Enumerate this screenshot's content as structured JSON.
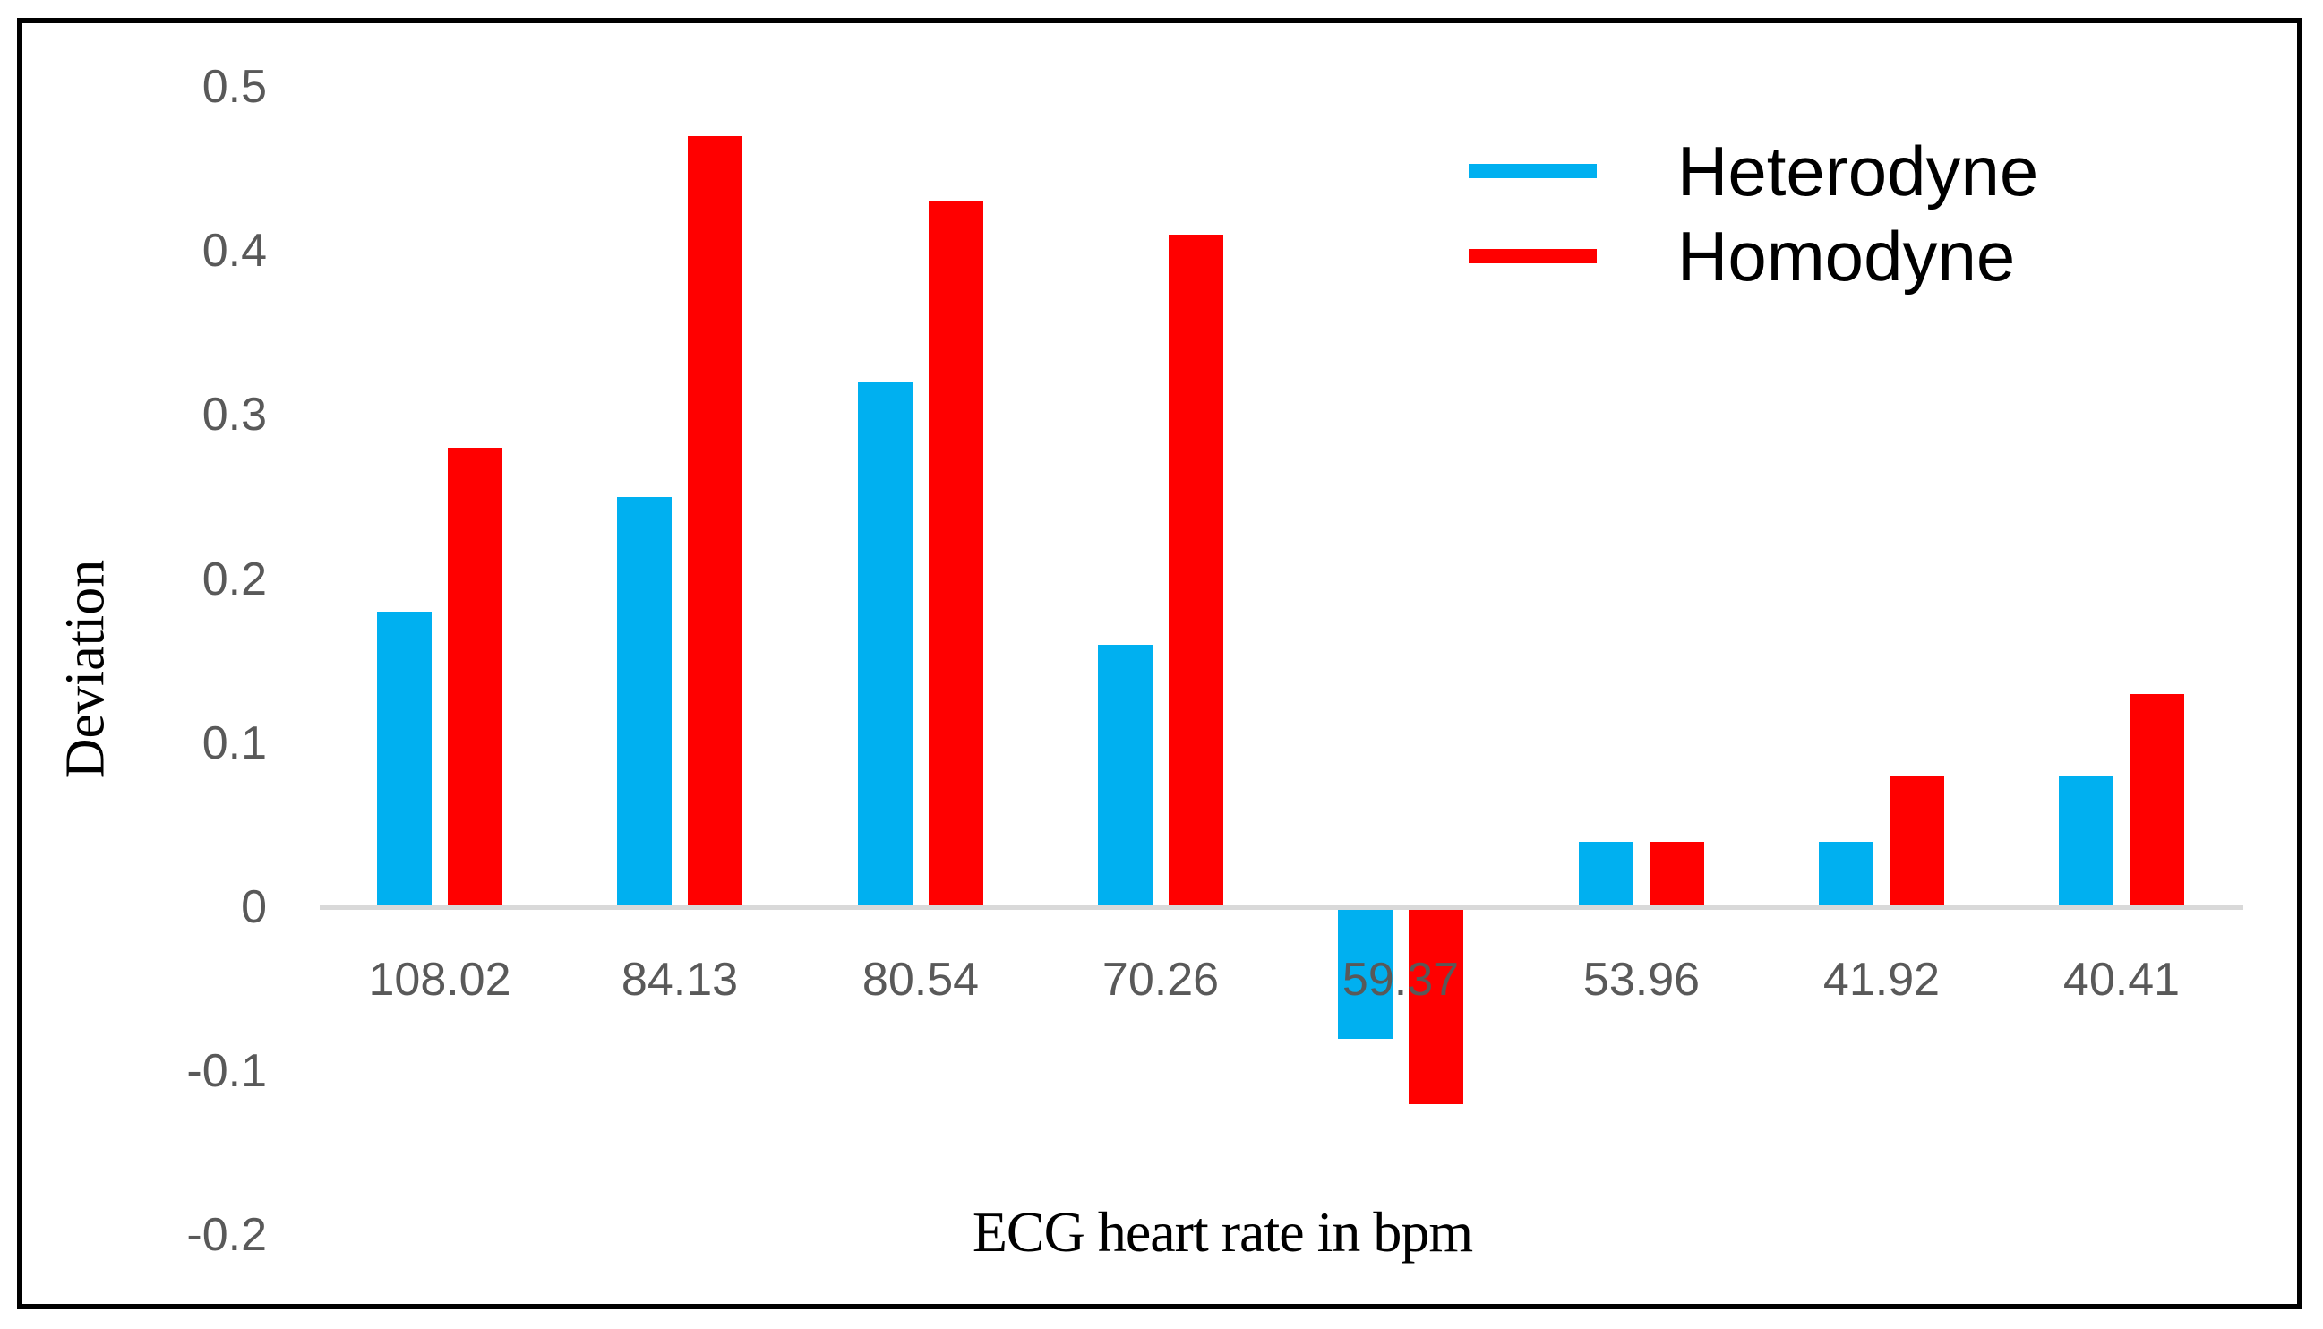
{
  "figure": {
    "background": "#FFFFFF",
    "border_color": "#000000"
  },
  "chart_data": {
    "type": "bar",
    "title": "",
    "xlabel": "ECG heart rate in bpm",
    "ylabel": "Deviation",
    "categories": [
      "108.02",
      "84.13",
      "80.54",
      "70.26",
      "59.37",
      "53.96",
      "41.92",
      "40.41"
    ],
    "series": [
      {
        "name": "Heterodyne",
        "color": "#00B0F0",
        "values": [
          0.18,
          0.25,
          0.32,
          0.16,
          -0.08,
          0.04,
          0.04,
          0.08
        ]
      },
      {
        "name": "Homodyne",
        "color": "#FF0000",
        "values": [
          0.28,
          0.47,
          0.43,
          0.41,
          -0.12,
          0.04,
          0.08,
          0.13
        ]
      }
    ],
    "ylim": [
      -0.2,
      0.5
    ],
    "ytick_labels": [
      "0.5",
      "0.4",
      "0.3",
      "0.2",
      "0.1",
      "0",
      "-0.1",
      "-0.2"
    ],
    "ytick_values": [
      0.5,
      0.4,
      0.3,
      0.2,
      0.1,
      0,
      -0.1,
      -0.2
    ],
    "grid": false,
    "legend_position": "top-right",
    "axis_line_color": "#D9D9D9",
    "tick_label_color": "#595959"
  }
}
